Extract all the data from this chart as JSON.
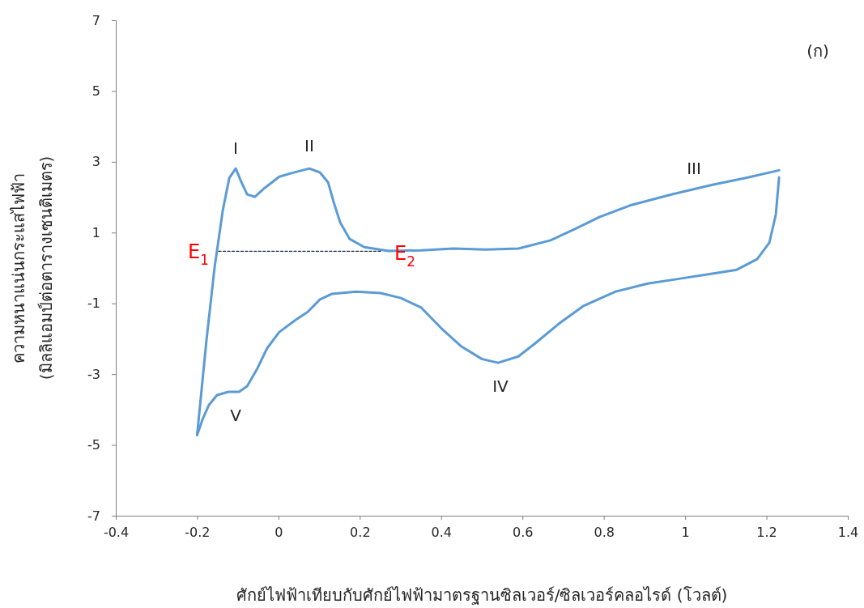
{
  "chart_data": {
    "type": "line",
    "xlabel": "ศักย์ไฟฟ้าเทียบกับศักย์ไฟฟ้ามาตรฐานซิลเวอร์/ซิลเวอร์คลอไรด์ (โวลต์)",
    "ylabel": "ความหนาแน่นกระแสไฟฟ้า\n(มิลลิแอมป์ต่อตารางเซนติเมตร)",
    "xlim": [
      -0.4,
      1.4
    ],
    "xticks": [
      -0.4,
      -0.2,
      0,
      0.2,
      0.4,
      0.6,
      0.8,
      1,
      1.2,
      1.4
    ],
    "ylim": [
      -7,
      7
    ],
    "yticks": [
      -7,
      -5,
      -3,
      -1,
      1,
      3,
      5,
      7
    ],
    "grid": false,
    "marker": "none",
    "series": [
      {
        "color": "#5b9bd5",
        "line_style": "solid",
        "x": [
          -0.2,
          -0.177,
          -0.157,
          -0.137,
          -0.121,
          -0.105,
          -0.091,
          -0.077,
          -0.058,
          -0.034,
          0.002,
          0.032,
          0.076,
          0.102,
          0.122,
          0.136,
          0.152,
          0.175,
          0.211,
          0.271,
          0.351,
          0.43,
          0.51,
          0.59,
          0.669,
          0.729,
          0.789,
          0.868,
          0.968,
          1.067,
          1.147,
          1.231
        ],
        "values": [
          -4.72,
          -2.04,
          0.02,
          1.62,
          2.54,
          2.81,
          2.42,
          2.08,
          2.01,
          2.26,
          2.58,
          2.68,
          2.81,
          2.7,
          2.42,
          1.85,
          1.28,
          0.82,
          0.59,
          0.48,
          0.5,
          0.55,
          0.52,
          0.55,
          0.78,
          1.1,
          1.44,
          1.78,
          2.08,
          2.35,
          2.54,
          2.76
        ]
      },
      {
        "color": "#5b9bd5",
        "line_style": "solid",
        "x": [
          1.231,
          1.223,
          1.207,
          1.177,
          1.127,
          1.067,
          0.988,
          0.908,
          0.828,
          0.749,
          0.689,
          0.629,
          0.59,
          0.54,
          0.5,
          0.45,
          0.4,
          0.351,
          0.301,
          0.251,
          0.191,
          0.132,
          0.102,
          0.072,
          0.042,
          0.002,
          -0.028,
          -0.052,
          -0.077,
          -0.097,
          -0.123,
          -0.151,
          -0.171,
          -0.186,
          -0.2
        ],
        "values": [
          2.56,
          1.51,
          0.71,
          0.25,
          -0.05,
          -0.16,
          -0.3,
          -0.44,
          -0.67,
          -1.08,
          -1.58,
          -2.15,
          -2.5,
          -2.68,
          -2.57,
          -2.22,
          -1.7,
          -1.12,
          -0.85,
          -0.71,
          -0.67,
          -0.73,
          -0.89,
          -1.24,
          -1.47,
          -1.81,
          -2.27,
          -2.84,
          -3.34,
          -3.5,
          -3.5,
          -3.59,
          -3.87,
          -4.26,
          -4.72
        ]
      },
      {
        "color": "#203050",
        "line_style": "dashed",
        "x": [
          -0.147,
          0.251
        ],
        "values": [
          0.47,
          0.47
        ]
      }
    ],
    "annotations": [
      "I",
      "II",
      "III",
      "IV",
      "V",
      "E$_{1}$",
      "E$_{2}$",
      "(ก)"
    ]
  }
}
